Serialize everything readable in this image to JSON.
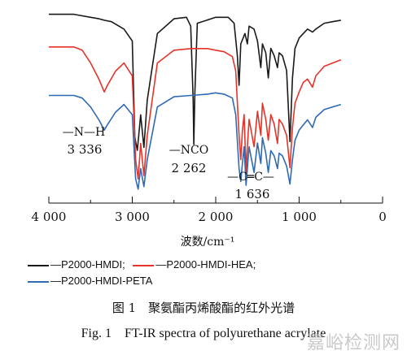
{
  "chart_data": {
    "type": "line",
    "xlabel": "波数/cm⁻¹",
    "xlim": [
      4000,
      0
    ],
    "x_reversed": true,
    "xticks": [
      4000,
      3000,
      2000,
      1000,
      0
    ],
    "xtick_labels": [
      "4 000",
      "3 000",
      "2 000",
      "1 000",
      "0"
    ],
    "y_axis_shown": false,
    "grid": false,
    "legend_placement": "below plot",
    "series": [
      {
        "name": "—P2000-HMDI",
        "color": "#1a1a1a",
        "offset": 0,
        "points": [
          [
            4000,
            98
          ],
          [
            3700,
            98
          ],
          [
            3500,
            96
          ],
          [
            3400,
            95
          ],
          [
            3336,
            94
          ],
          [
            3250,
            93
          ],
          [
            3100,
            88
          ],
          [
            3000,
            80
          ],
          [
            2970,
            15
          ],
          [
            2940,
            6
          ],
          [
            2900,
            30
          ],
          [
            2860,
            8
          ],
          [
            2820,
            40
          ],
          [
            2700,
            85
          ],
          [
            2500,
            95
          ],
          [
            2350,
            96
          ],
          [
            2300,
            90
          ],
          [
            2270,
            40
          ],
          [
            2262,
            10
          ],
          [
            2250,
            45
          ],
          [
            2220,
            92
          ],
          [
            2000,
            96
          ],
          [
            1850,
            96
          ],
          [
            1780,
            92
          ],
          [
            1740,
            70
          ],
          [
            1720,
            50
          ],
          [
            1700,
            78
          ],
          [
            1650,
            85
          ],
          [
            1620,
            78
          ],
          [
            1600,
            90
          ],
          [
            1540,
            88
          ],
          [
            1500,
            80
          ],
          [
            1460,
            62
          ],
          [
            1440,
            78
          ],
          [
            1400,
            72
          ],
          [
            1370,
            55
          ],
          [
            1340,
            75
          ],
          [
            1300,
            70
          ],
          [
            1260,
            62
          ],
          [
            1240,
            72
          ],
          [
            1200,
            70
          ],
          [
            1150,
            60
          ],
          [
            1110,
            12
          ],
          [
            1080,
            55
          ],
          [
            1050,
            75
          ],
          [
            1000,
            82
          ],
          [
            950,
            85
          ],
          [
            900,
            88
          ],
          [
            840,
            86
          ],
          [
            800,
            88
          ],
          [
            700,
            92
          ],
          [
            600,
            93
          ],
          [
            500,
            94
          ]
        ]
      },
      {
        "name": "—P2000-HMDI-HEA",
        "color": "#e63329",
        "offset": 0,
        "points": [
          [
            4000,
            90
          ],
          [
            3700,
            90
          ],
          [
            3600,
            88
          ],
          [
            3500,
            80
          ],
          [
            3400,
            70
          ],
          [
            3336,
            62
          ],
          [
            3300,
            66
          ],
          [
            3200,
            75
          ],
          [
            3100,
            80
          ],
          [
            3000,
            72
          ],
          [
            2960,
            20
          ],
          [
            2930,
            8
          ],
          [
            2900,
            30
          ],
          [
            2860,
            10
          ],
          [
            2820,
            35
          ],
          [
            2700,
            80
          ],
          [
            2500,
            88
          ],
          [
            2300,
            89
          ],
          [
            2100,
            89
          ],
          [
            2000,
            88
          ],
          [
            1900,
            87
          ],
          [
            1800,
            84
          ],
          [
            1760,
            75
          ],
          [
            1720,
            35
          ],
          [
            1700,
            20
          ],
          [
            1680,
            38
          ],
          [
            1660,
            48
          ],
          [
            1636,
            12
          ],
          [
            1620,
            28
          ],
          [
            1600,
            45
          ],
          [
            1540,
            28
          ],
          [
            1500,
            50
          ],
          [
            1460,
            35
          ],
          [
            1440,
            55
          ],
          [
            1400,
            45
          ],
          [
            1370,
            32
          ],
          [
            1340,
            48
          ],
          [
            1300,
            42
          ],
          [
            1260,
            30
          ],
          [
            1240,
            45
          ],
          [
            1200,
            42
          ],
          [
            1150,
            35
          ],
          [
            1110,
            15
          ],
          [
            1080,
            40
          ],
          [
            1050,
            55
          ],
          [
            1000,
            62
          ],
          [
            950,
            68
          ],
          [
            900,
            70
          ],
          [
            840,
            65
          ],
          [
            800,
            72
          ],
          [
            700,
            78
          ],
          [
            600,
            80
          ],
          [
            500,
            82
          ]
        ]
      },
      {
        "name": "—P2000-HMDI-PETA",
        "color": "#2f6ab5",
        "offset": 0,
        "points": [
          [
            4000,
            75
          ],
          [
            3700,
            75
          ],
          [
            3600,
            73
          ],
          [
            3500,
            66
          ],
          [
            3400,
            56
          ],
          [
            3336,
            48
          ],
          [
            3300,
            52
          ],
          [
            3200,
            62
          ],
          [
            3100,
            68
          ],
          [
            3000,
            60
          ],
          [
            2960,
            10
          ],
          [
            2930,
            2
          ],
          [
            2900,
            18
          ],
          [
            2860,
            4
          ],
          [
            2820,
            25
          ],
          [
            2700,
            66
          ],
          [
            2500,
            74
          ],
          [
            2300,
            75
          ],
          [
            2100,
            76
          ],
          [
            2000,
            77
          ],
          [
            1900,
            76
          ],
          [
            1800,
            73
          ],
          [
            1760,
            60
          ],
          [
            1720,
            18
          ],
          [
            1700,
            8
          ],
          [
            1680,
            22
          ],
          [
            1660,
            35
          ],
          [
            1636,
            5
          ],
          [
            1620,
            18
          ],
          [
            1600,
            35
          ],
          [
            1540,
            15
          ],
          [
            1500,
            38
          ],
          [
            1460,
            22
          ],
          [
            1440,
            42
          ],
          [
            1400,
            30
          ],
          [
            1370,
            15
          ],
          [
            1340,
            32
          ],
          [
            1300,
            28
          ],
          [
            1260,
            18
          ],
          [
            1240,
            30
          ],
          [
            1200,
            28
          ],
          [
            1150,
            20
          ],
          [
            1110,
            6
          ],
          [
            1080,
            25
          ],
          [
            1050,
            40
          ],
          [
            1000,
            48
          ],
          [
            950,
            52
          ],
          [
            900,
            56
          ],
          [
            840,
            50
          ],
          [
            800,
            58
          ],
          [
            700,
            64
          ],
          [
            600,
            66
          ],
          [
            500,
            68
          ]
        ]
      }
    ],
    "annotations": [
      {
        "id": "nh",
        "text": "—N—H",
        "value": "3 336"
      },
      {
        "id": "nco",
        "text": "—NCO",
        "value": "2 262"
      },
      {
        "id": "cc",
        "text": "—C═C—",
        "value": "1 636"
      }
    ]
  },
  "caption_cn": "图 1　聚氨酯丙烯酸酯的红外光谱",
  "caption_en": "Fig. 1　FT-IR spectra of polyurethane acrylate",
  "watermark": "嘉峪检测网"
}
